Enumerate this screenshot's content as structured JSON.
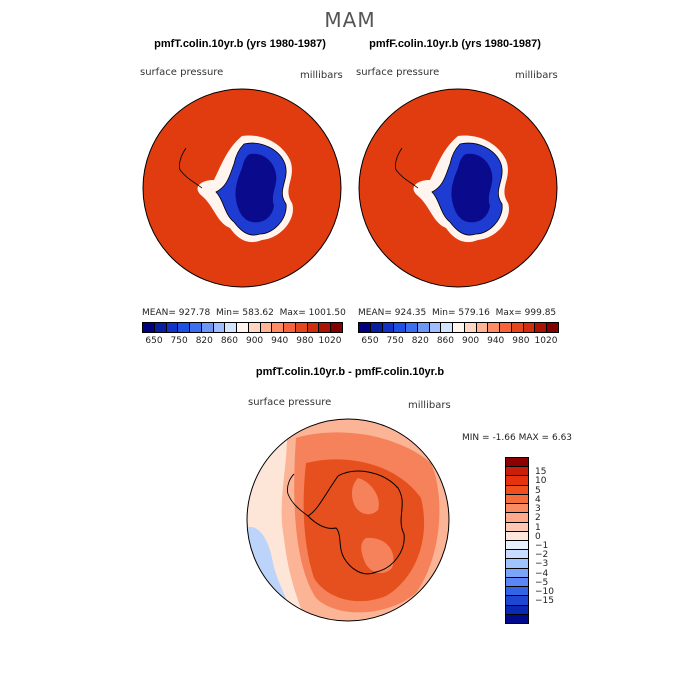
{
  "figure_title": "MAM",
  "panels": [
    {
      "title": "pmfT.colin.10yr.b (yrs 1980-1987)",
      "left_label": "surface pressure",
      "right_label": "millibars",
      "stats": {
        "mean_label": "MEAN=",
        "mean": "927.78",
        "min_label": "Min=",
        "min": "583.62",
        "max_label": "Max=",
        "max": "1001.50"
      }
    },
    {
      "title": "pmfF.colin.10yr.b (yrs 1980-1987)",
      "left_label": "surface pressure",
      "right_label": "millibars",
      "stats": {
        "mean_label": "MEAN=",
        "mean": "924.35",
        "min_label": "Min=",
        "min": "579.16",
        "max_label": "Max=",
        "max": "999.85"
      }
    }
  ],
  "abs_colorbar": {
    "colors": [
      "#000080",
      "#0a1ea0",
      "#1232c8",
      "#1e50e6",
      "#3c6ef0",
      "#6e96f5",
      "#a0beff",
      "#d2e4ff",
      "#fff5ee",
      "#ffd6c2",
      "#ffb496",
      "#ff8c64",
      "#f5643c",
      "#e6461e",
      "#d22d0f",
      "#aa1405",
      "#820000"
    ],
    "labels": [
      "650",
      "750",
      "820",
      "860",
      "900",
      "940",
      "980",
      "1020"
    ]
  },
  "diff_panel": {
    "title": "pmfT.colin.10yr.b - pmfF.colin.10yr.b",
    "left_label": "surface pressure",
    "right_label": "millibars",
    "minmax": {
      "min_label": "MIN =",
      "min": "-1.66",
      "max_label": "MAX =",
      "max": "6.63"
    }
  },
  "diff_colorbar": {
    "colors": [
      "#8b0000",
      "#c81e0a",
      "#e6320f",
      "#f0501e",
      "#f56e3c",
      "#fa8c64",
      "#ffaa8c",
      "#ffc8b4",
      "#ffe6dc",
      "#e6f0ff",
      "#c8dcff",
      "#a0c3ff",
      "#7ba5fa",
      "#5a87f5",
      "#3264e6",
      "#1e46d2",
      "#0a28b4",
      "#000a8c"
    ],
    "labels": [
      "15",
      "10",
      "5",
      "4",
      "3",
      "2",
      "1",
      "0",
      "−1",
      "−2",
      "−3",
      "−4",
      "−5",
      "−10",
      "−15"
    ]
  },
  "colors": {
    "ocean_abs": "#e03c0f",
    "ice_dark": "#0a0a8c",
    "ice_mid": "#1e3cd2",
    "ice_light": "#5a82f0",
    "diff_high": "#e6501e",
    "diff_mid": "#f5825a",
    "diff_low": "#fbb496",
    "diff_zero": "#fde6d8",
    "diff_neg": "#bcd4fa"
  }
}
